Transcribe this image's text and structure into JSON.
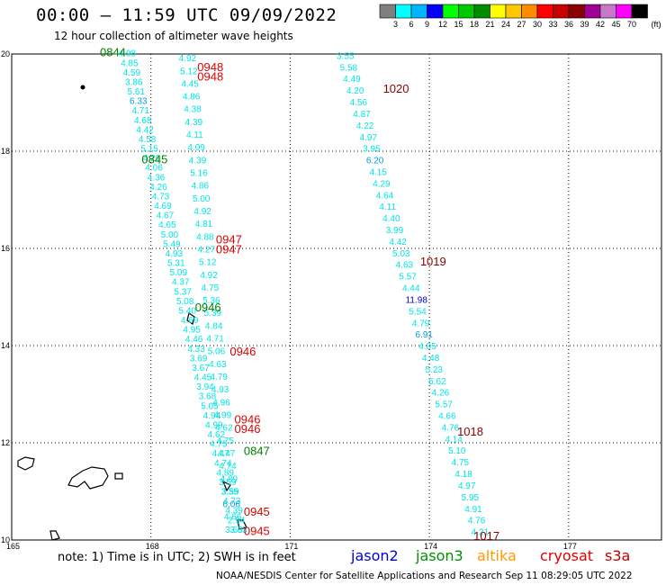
{
  "header": {
    "title": "00:00 — 11:59 UTC 09/09/2022",
    "subtitle": "12 hour collection of altimeter wave heights"
  },
  "colorbar": {
    "colors": [
      "#7f7f7f",
      "#00ffff",
      "#00b4ff",
      "#0000ff",
      "#00ff00",
      "#00c800",
      "#008c00",
      "#ffff00",
      "#ffc800",
      "#ff8c00",
      "#ff0000",
      "#c80000",
      "#8b0000",
      "#a00096",
      "#c878c8",
      "#ff00ff",
      "#000000"
    ],
    "labels": [
      "3",
      "6",
      "9",
      "12",
      "15",
      "18",
      "21",
      "24",
      "27",
      "30",
      "33",
      "36",
      "39",
      "42",
      "45",
      "70"
    ],
    "unit": "(ft)"
  },
  "map": {
    "lon_ticks": [
      "165",
      "168",
      "171",
      "174",
      "177"
    ],
    "lat_ticks": [
      "20",
      "18",
      "16",
      "14",
      "12",
      "10"
    ],
    "lon_range": [
      165,
      179
    ],
    "lat_range": [
      10,
      20
    ]
  },
  "tracks": [
    {
      "name": "west-track",
      "color": "#00e5e5",
      "values": [
        "4.98",
        "4.85",
        "4.59",
        "3.86",
        "5.61",
        "6.33",
        "4.71",
        "4.68",
        "4.42",
        "4.58",
        "5.15",
        "4.29",
        "4.06",
        "4.36",
        "4.26",
        "4.73",
        "4.69",
        "4.67",
        "4.65",
        "5.00",
        "5.49",
        "4.93",
        "5.31",
        "5.09",
        "4.37",
        "5.37",
        "5.08",
        "5.40",
        "4.69",
        "4.95",
        "4.46",
        "4.33",
        "3.69",
        "3.67",
        "4.45",
        "3.94",
        "3.68",
        "5.05",
        "4.94",
        "4.99",
        "4.62",
        "4.75",
        "4.47",
        "4.74",
        "4.89",
        "3.59",
        "3.35",
        "4.73",
        "4.39",
        "2.94",
        "3.63"
      ],
      "start": [
        167.3,
        19.95
      ],
      "end": [
        169.7,
        10.15
      ]
    },
    {
      "name": "middle-track",
      "color": "#00e5e5",
      "values": [
        "4.92",
        "5.12",
        "4.45",
        "4.86",
        "4.38",
        "4.39",
        "4.11",
        "4.09",
        "4.39",
        "5.16",
        "4.86",
        "5.00",
        "4.92",
        "4.81",
        "4.88",
        "4.27",
        "5.12",
        "4.92",
        "4.75",
        "5.36",
        "5.39",
        "4.84",
        "4.71",
        "5.06",
        "4.63",
        "4.79",
        "4.93",
        "4.96",
        "4.99",
        "4.62",
        "4.75",
        "4.47",
        "4.74",
        "4.89",
        "3.59",
        "6.06",
        "4.66",
        "3.63"
      ],
      "start": [
        168.6,
        19.85
      ],
      "end": [
        169.6,
        10.15
      ]
    },
    {
      "name": "east-track",
      "color": "#00e5e5",
      "values": [
        "3.55",
        "5.58",
        "4.49",
        "4.20",
        "4.56",
        "4.87",
        "4.22",
        "4.97",
        "3.95",
        "6.20",
        "4.15",
        "4.29",
        "4.64",
        "4.11",
        "4.40",
        "3.99",
        "4.42",
        "5.03",
        "4.63",
        "5.57",
        "4.44",
        "11.98",
        "5.54",
        "4.79",
        "6.91",
        "4.05",
        "4.48",
        "5.23",
        "5.62",
        "4.26",
        "5.57",
        "4.66",
        "4.76",
        "4.14",
        "5.10",
        "4.75",
        "4.18",
        "4.97",
        "5.95",
        "4.91",
        "4.76",
        "4.21"
      ],
      "start": [
        172.0,
        19.9
      ],
      "end": [
        174.9,
        10.1
      ]
    }
  ],
  "time_labels": [
    {
      "text": "0844",
      "color": "#008000",
      "lon": 166.9,
      "lat": 19.95
    },
    {
      "text": "0948",
      "color": "#e00000",
      "lon": 169.0,
      "lat": 19.65
    },
    {
      "text": "0948",
      "color": "#e00000",
      "lon": 169.0,
      "lat": 19.45
    },
    {
      "text": "1020",
      "color": "#8b0000",
      "lon": 173.0,
      "lat": 19.2
    },
    {
      "text": "0845",
      "color": "#008000",
      "lon": 167.8,
      "lat": 17.75
    },
    {
      "text": "0947",
      "color": "#e00000",
      "lon": 169.4,
      "lat": 16.1
    },
    {
      "text": "0947",
      "color": "#e00000",
      "lon": 169.4,
      "lat": 15.9
    },
    {
      "text": "1019",
      "color": "#8b0000",
      "lon": 173.8,
      "lat": 15.65
    },
    {
      "text": "0946",
      "color": "#008000",
      "lon": 168.95,
      "lat": 14.7
    },
    {
      "text": "0946",
      "color": "#e00000",
      "lon": 169.7,
      "lat": 13.8
    },
    {
      "text": "0946",
      "color": "#e00000",
      "lon": 169.8,
      "lat": 12.4
    },
    {
      "text": "0946",
      "color": "#e00000",
      "lon": 169.8,
      "lat": 12.2
    },
    {
      "text": "1018",
      "color": "#8b0000",
      "lon": 174.6,
      "lat": 12.15
    },
    {
      "text": "0847",
      "color": "#008000",
      "lon": 170.0,
      "lat": 11.75
    },
    {
      "text": "0945",
      "color": "#e00000",
      "lon": 170.0,
      "lat": 10.5
    },
    {
      "text": "0945",
      "color": "#e00000",
      "lon": 170.0,
      "lat": 10.1
    },
    {
      "text": "1017",
      "color": "#8b0000",
      "lon": 174.95,
      "lat": 10.0
    }
  ],
  "footer": {
    "note": "note:  1) Time is in UTC;  2) SWH is in feet",
    "satellites": [
      {
        "name": "jason2",
        "color": "#0000dd"
      },
      {
        "name": "jason3",
        "color": "#009000"
      },
      {
        "name": "altika",
        "color": "#ff9900"
      },
      {
        "name": "cryosat",
        "color": "#e00000"
      },
      {
        "name": "s3a",
        "color": "#c00000"
      }
    ],
    "credit": "NOAA/NESDIS Center for Satellite Applications and Research    Sep 11 08:29:05 UTC 2022"
  }
}
